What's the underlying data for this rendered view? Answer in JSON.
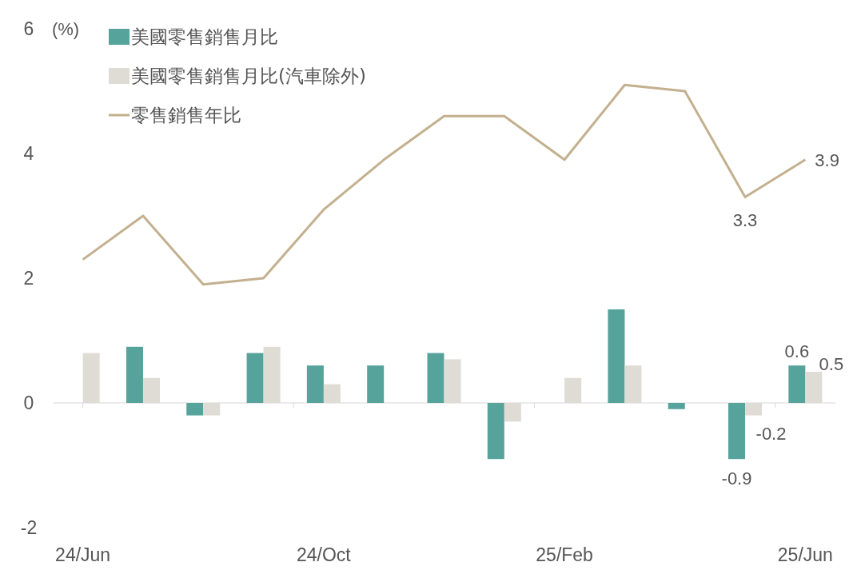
{
  "chart_data": {
    "type": "bar",
    "ylabel": "(%)",
    "categories": [
      "24/Jun",
      null,
      null,
      null,
      "24/Oct",
      null,
      null,
      null,
      "25/Feb",
      null,
      null,
      null,
      "25/Jun"
    ],
    "ylim": [
      -2,
      6
    ],
    "yticks": [
      -2,
      0,
      2,
      4,
      6
    ],
    "legend": "top left",
    "series": [
      {
        "name": "美國零售銷售月比",
        "color": "#56a39b",
        "values": [
          0,
          0.9,
          -0.2,
          0.8,
          0.6,
          0.6,
          0.8,
          -0.9,
          0,
          1.5,
          -0.1,
          -0.9,
          0.6
        ],
        "value_labels": [
          null,
          null,
          null,
          null,
          null,
          null,
          null,
          null,
          null,
          null,
          null,
          "-0.9",
          "0.6"
        ]
      },
      {
        "name": "美國零售銷售月比(汽車除外)",
        "color": "#dfdcd6",
        "values": [
          0.8,
          0.4,
          -0.2,
          0.9,
          0.3,
          0,
          0.7,
          -0.3,
          0.4,
          0.6,
          0,
          -0.2,
          0.5
        ],
        "value_labels": [
          null,
          null,
          null,
          null,
          null,
          null,
          null,
          null,
          null,
          null,
          null,
          "-0.2",
          "0.5"
        ]
      },
      {
        "name": "零售銷售年比",
        "type": "line",
        "color": "#c3b08f",
        "values": [
          2.3,
          3.0,
          1.9,
          2.0,
          3.1,
          3.9,
          4.6,
          4.6,
          3.9,
          5.1,
          5.0,
          3.3,
          3.9
        ],
        "value_labels": [
          null,
          null,
          null,
          null,
          null,
          null,
          null,
          null,
          null,
          null,
          null,
          "3.3",
          "3.9"
        ]
      }
    ]
  }
}
